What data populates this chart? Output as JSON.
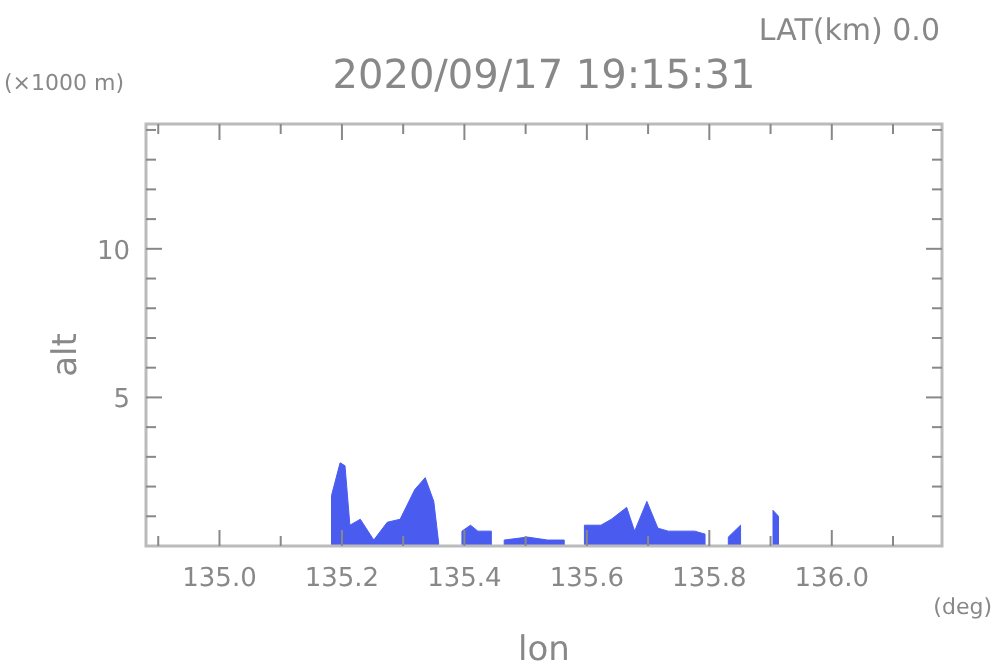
{
  "chart_data": {
    "type": "area",
    "title": "2020/09/17 19:15:31",
    "xlabel": "lon",
    "ylabel": "alt",
    "annotations": [
      "LAT(km) 0.0",
      "(×1000 m)",
      "(deg)"
    ],
    "x": [
      135.183,
      135.197,
      135.205,
      135.213,
      135.23,
      135.252,
      135.274,
      135.295,
      135.319,
      135.336,
      135.35,
      135.358,
      135.383,
      135.396,
      135.41,
      135.422,
      135.444,
      135.448,
      135.465,
      135.503,
      135.536,
      135.563,
      135.58,
      135.596,
      135.623,
      135.64,
      135.665,
      135.678,
      135.698,
      135.716,
      135.733,
      135.776,
      135.793,
      135.809,
      135.831,
      135.851,
      135.864,
      135.904,
      135.913
    ],
    "series": [
      {
        "color": "#4a5cf0",
        "values": [
          1.7,
          2.8,
          2.7,
          0.7,
          0.9,
          0.2,
          0.8,
          0.9,
          1.9,
          2.3,
          1.5,
          0.1,
          null,
          0.5,
          0.7,
          0.5,
          0.5,
          null,
          0.2,
          0.3,
          0.2,
          0.2,
          null,
          0.7,
          0.7,
          0.9,
          1.3,
          0.5,
          1.5,
          0.6,
          0.5,
          0.5,
          0.4,
          null,
          0.3,
          0.7,
          null,
          1.2,
          1.0
        ]
      }
    ],
    "xlim": [
      134.88,
      136.18
    ],
    "ylim": [
      0,
      14.2
    ],
    "xticks": [
      {
        "value": 134.9,
        "label": null
      },
      {
        "value": 135.0,
        "label": "135.0"
      },
      {
        "value": 135.1,
        "label": null
      },
      135.2,
      {
        "value": 135.3,
        "label": null
      },
      135.4,
      {
        "value": 135.5,
        "label": null
      },
      135.6,
      {
        "value": 135.7,
        "label": null
      },
      135.8,
      {
        "value": 135.9,
        "label": null
      },
      {
        "value": 136.0,
        "label": "136.0"
      },
      {
        "value": 136.1,
        "label": null
      }
    ],
    "yticks": [
      {
        "value": 1,
        "label": null
      },
      {
        "value": 2,
        "label": null
      },
      {
        "value": 3,
        "label": null
      },
      {
        "value": 4,
        "label": null
      },
      5,
      {
        "value": 6,
        "label": null
      },
      {
        "value": 7,
        "label": null
      },
      {
        "value": 8,
        "label": null
      },
      {
        "value": 9,
        "label": null
      },
      10,
      {
        "value": 11,
        "label": null
      },
      {
        "value": 12,
        "label": null
      },
      {
        "value": 13,
        "label": null
      },
      {
        "value": 14,
        "label": null
      }
    ],
    "grid": false
  }
}
